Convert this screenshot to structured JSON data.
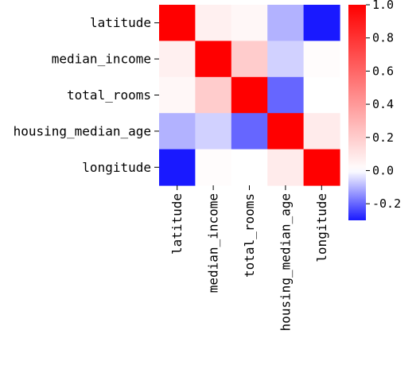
{
  "chart_data": {
    "type": "heatmap",
    "title": "",
    "xlabel": "",
    "ylabel": "",
    "x_labels": [
      "latitude",
      "median_income",
      "total_rooms",
      "housing_median_age",
      "longitude"
    ],
    "y_labels": [
      "latitude",
      "median_income",
      "total_rooms",
      "housing_median_age",
      "longitude"
    ],
    "values": [
      [
        1.0,
        0.06,
        0.03,
        -0.1,
        -0.3
      ],
      [
        0.06,
        1.0,
        0.2,
        -0.06,
        0.01
      ],
      [
        0.03,
        0.2,
        1.0,
        -0.2,
        0.0
      ],
      [
        -0.1,
        -0.06,
        -0.2,
        1.0,
        0.08
      ],
      [
        -0.3,
        0.01,
        0.0,
        0.08,
        1.0
      ]
    ],
    "colormap": "bwr",
    "value_range": [
      -0.3,
      1.0
    ],
    "colorbar": {
      "ticks": [
        -0.2,
        0.0,
        0.2,
        0.4,
        0.6,
        0.8,
        1.0
      ],
      "tick_labels": [
        "-0.2",
        "0.0",
        "0.2",
        "0.4",
        "0.6",
        "0.8",
        "1.0"
      ]
    },
    "colors": {
      "low": "#0000ff",
      "mid": "#ffffff",
      "high": "#ff0000"
    },
    "grid": false
  }
}
